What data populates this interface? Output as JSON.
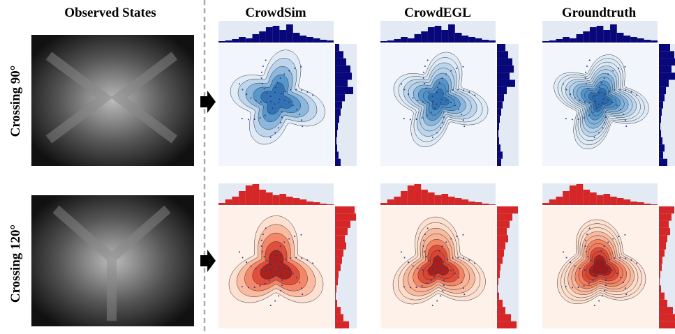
{
  "columns": [
    "Observed States",
    "CrowdSim",
    "CrowdEGL",
    "Groundtruth"
  ],
  "rows": [
    "Crossing 90°",
    "Crossing 120°"
  ]
}
